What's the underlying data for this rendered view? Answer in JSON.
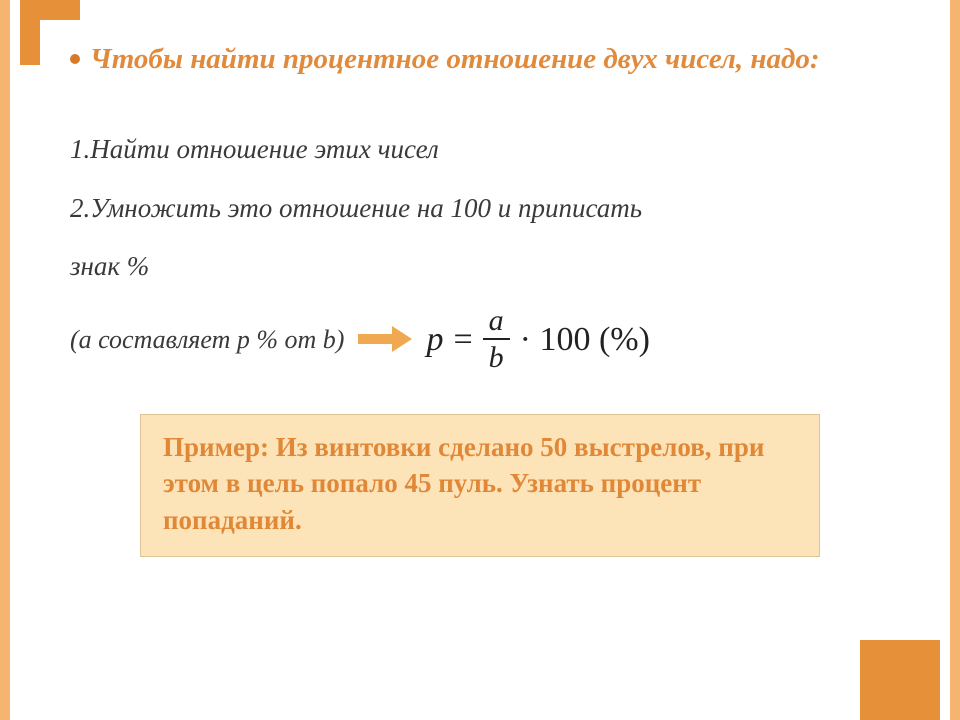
{
  "colors": {
    "side_border": "#f5b571",
    "corner": "#e7903a",
    "heading": "#e28a3b",
    "body_text": "#3a3a3a",
    "arrow": "#f0a851",
    "example_bg": "#fde4b8",
    "example_border": "#dcc496",
    "example_text": "#e08838",
    "formula_text": "#222222",
    "background": "#ffffff"
  },
  "heading": "Чтобы найти процентное отношение двух чисел, надо:",
  "steps": {
    "s1": "1.Найти отношение этих чисел",
    "s2": "2.Умножить это отношение на 100 и приписать",
    "s3": "знак %"
  },
  "formula_label": "(a составляет p % от b)",
  "formula": {
    "lhs": "p",
    "eq": "=",
    "num": "a",
    "den": "b",
    "mult": "· 100 (%)"
  },
  "example": "Пример: Из винтовки сделано 50 выстрелов, при этом в цель попало 45 пуль. Узнать процент попаданий."
}
